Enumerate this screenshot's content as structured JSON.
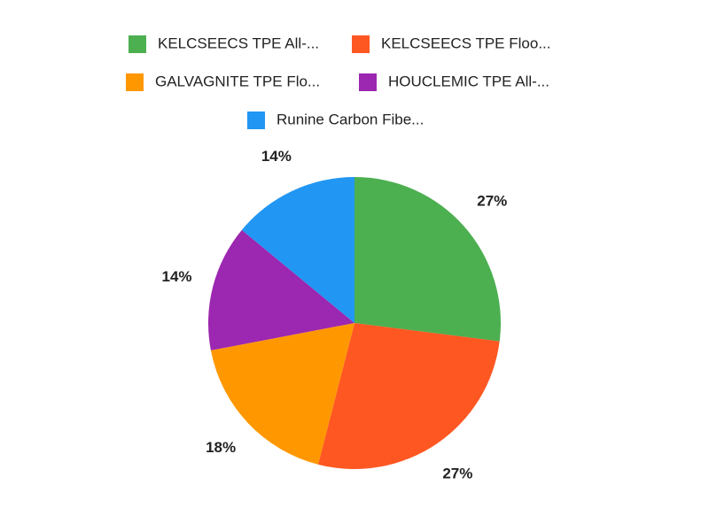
{
  "chart_data": {
    "type": "pie",
    "categories": [
      "KELCSEECS TPE All-...",
      "KELCSEECS TPE Floo...",
      "GALVAGNITE TPE Flo...",
      "HOUCLEMIC TPE All-...",
      "Runine Carbon Fibe..."
    ],
    "values": [
      27,
      27,
      18,
      14,
      14
    ],
    "value_labels": [
      "27%",
      "27%",
      "18%",
      "14%",
      "14%"
    ],
    "colors": [
      "#4caf50",
      "#ff5722",
      "#ff9800",
      "#9c27b0",
      "#2196f3"
    ],
    "legend": "top"
  }
}
